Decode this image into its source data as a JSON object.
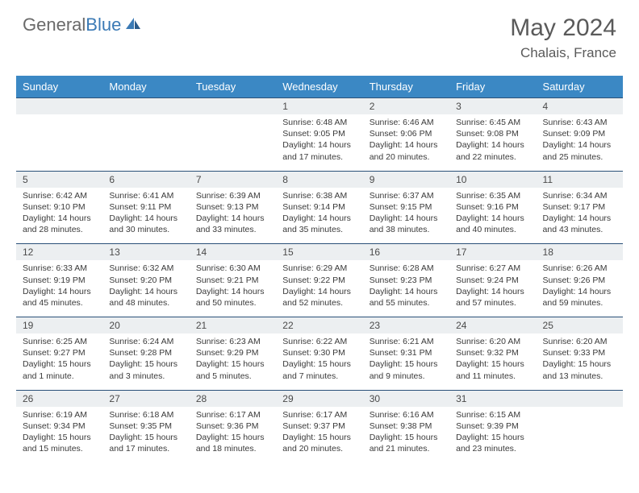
{
  "brand": {
    "part1": "General",
    "part2": "Blue"
  },
  "title": "May 2024",
  "location": "Chalais, France",
  "dayHeaders": [
    "Sunday",
    "Monday",
    "Tuesday",
    "Wednesday",
    "Thursday",
    "Friday",
    "Saturday"
  ],
  "colors": {
    "headerBg": "#3b88c4",
    "headerText": "#ffffff",
    "dayNumBg": "#eceff1",
    "borderTop": "#2a5078",
    "bodyText": "#3a3a3a",
    "titleText": "#5a5a5a",
    "logoGray": "#6a6a6a",
    "logoBlue": "#3b7ab5"
  },
  "typography": {
    "month_fontsize": 30,
    "location_fontsize": 17,
    "header_fontsize": 13,
    "daynum_fontsize": 12,
    "cell_fontsize": 10.5
  },
  "weeks": [
    [
      {
        "num": "",
        "sunrise": "",
        "sunset": "",
        "daylight": ""
      },
      {
        "num": "",
        "sunrise": "",
        "sunset": "",
        "daylight": ""
      },
      {
        "num": "",
        "sunrise": "",
        "sunset": "",
        "daylight": ""
      },
      {
        "num": "1",
        "sunrise": "Sunrise: 6:48 AM",
        "sunset": "Sunset: 9:05 PM",
        "daylight": "Daylight: 14 hours and 17 minutes."
      },
      {
        "num": "2",
        "sunrise": "Sunrise: 6:46 AM",
        "sunset": "Sunset: 9:06 PM",
        "daylight": "Daylight: 14 hours and 20 minutes."
      },
      {
        "num": "3",
        "sunrise": "Sunrise: 6:45 AM",
        "sunset": "Sunset: 9:08 PM",
        "daylight": "Daylight: 14 hours and 22 minutes."
      },
      {
        "num": "4",
        "sunrise": "Sunrise: 6:43 AM",
        "sunset": "Sunset: 9:09 PM",
        "daylight": "Daylight: 14 hours and 25 minutes."
      }
    ],
    [
      {
        "num": "5",
        "sunrise": "Sunrise: 6:42 AM",
        "sunset": "Sunset: 9:10 PM",
        "daylight": "Daylight: 14 hours and 28 minutes."
      },
      {
        "num": "6",
        "sunrise": "Sunrise: 6:41 AM",
        "sunset": "Sunset: 9:11 PM",
        "daylight": "Daylight: 14 hours and 30 minutes."
      },
      {
        "num": "7",
        "sunrise": "Sunrise: 6:39 AM",
        "sunset": "Sunset: 9:13 PM",
        "daylight": "Daylight: 14 hours and 33 minutes."
      },
      {
        "num": "8",
        "sunrise": "Sunrise: 6:38 AM",
        "sunset": "Sunset: 9:14 PM",
        "daylight": "Daylight: 14 hours and 35 minutes."
      },
      {
        "num": "9",
        "sunrise": "Sunrise: 6:37 AM",
        "sunset": "Sunset: 9:15 PM",
        "daylight": "Daylight: 14 hours and 38 minutes."
      },
      {
        "num": "10",
        "sunrise": "Sunrise: 6:35 AM",
        "sunset": "Sunset: 9:16 PM",
        "daylight": "Daylight: 14 hours and 40 minutes."
      },
      {
        "num": "11",
        "sunrise": "Sunrise: 6:34 AM",
        "sunset": "Sunset: 9:17 PM",
        "daylight": "Daylight: 14 hours and 43 minutes."
      }
    ],
    [
      {
        "num": "12",
        "sunrise": "Sunrise: 6:33 AM",
        "sunset": "Sunset: 9:19 PM",
        "daylight": "Daylight: 14 hours and 45 minutes."
      },
      {
        "num": "13",
        "sunrise": "Sunrise: 6:32 AM",
        "sunset": "Sunset: 9:20 PM",
        "daylight": "Daylight: 14 hours and 48 minutes."
      },
      {
        "num": "14",
        "sunrise": "Sunrise: 6:30 AM",
        "sunset": "Sunset: 9:21 PM",
        "daylight": "Daylight: 14 hours and 50 minutes."
      },
      {
        "num": "15",
        "sunrise": "Sunrise: 6:29 AM",
        "sunset": "Sunset: 9:22 PM",
        "daylight": "Daylight: 14 hours and 52 minutes."
      },
      {
        "num": "16",
        "sunrise": "Sunrise: 6:28 AM",
        "sunset": "Sunset: 9:23 PM",
        "daylight": "Daylight: 14 hours and 55 minutes."
      },
      {
        "num": "17",
        "sunrise": "Sunrise: 6:27 AM",
        "sunset": "Sunset: 9:24 PM",
        "daylight": "Daylight: 14 hours and 57 minutes."
      },
      {
        "num": "18",
        "sunrise": "Sunrise: 6:26 AM",
        "sunset": "Sunset: 9:26 PM",
        "daylight": "Daylight: 14 hours and 59 minutes."
      }
    ],
    [
      {
        "num": "19",
        "sunrise": "Sunrise: 6:25 AM",
        "sunset": "Sunset: 9:27 PM",
        "daylight": "Daylight: 15 hours and 1 minute."
      },
      {
        "num": "20",
        "sunrise": "Sunrise: 6:24 AM",
        "sunset": "Sunset: 9:28 PM",
        "daylight": "Daylight: 15 hours and 3 minutes."
      },
      {
        "num": "21",
        "sunrise": "Sunrise: 6:23 AM",
        "sunset": "Sunset: 9:29 PM",
        "daylight": "Daylight: 15 hours and 5 minutes."
      },
      {
        "num": "22",
        "sunrise": "Sunrise: 6:22 AM",
        "sunset": "Sunset: 9:30 PM",
        "daylight": "Daylight: 15 hours and 7 minutes."
      },
      {
        "num": "23",
        "sunrise": "Sunrise: 6:21 AM",
        "sunset": "Sunset: 9:31 PM",
        "daylight": "Daylight: 15 hours and 9 minutes."
      },
      {
        "num": "24",
        "sunrise": "Sunrise: 6:20 AM",
        "sunset": "Sunset: 9:32 PM",
        "daylight": "Daylight: 15 hours and 11 minutes."
      },
      {
        "num": "25",
        "sunrise": "Sunrise: 6:20 AM",
        "sunset": "Sunset: 9:33 PM",
        "daylight": "Daylight: 15 hours and 13 minutes."
      }
    ],
    [
      {
        "num": "26",
        "sunrise": "Sunrise: 6:19 AM",
        "sunset": "Sunset: 9:34 PM",
        "daylight": "Daylight: 15 hours and 15 minutes."
      },
      {
        "num": "27",
        "sunrise": "Sunrise: 6:18 AM",
        "sunset": "Sunset: 9:35 PM",
        "daylight": "Daylight: 15 hours and 17 minutes."
      },
      {
        "num": "28",
        "sunrise": "Sunrise: 6:17 AM",
        "sunset": "Sunset: 9:36 PM",
        "daylight": "Daylight: 15 hours and 18 minutes."
      },
      {
        "num": "29",
        "sunrise": "Sunrise: 6:17 AM",
        "sunset": "Sunset: 9:37 PM",
        "daylight": "Daylight: 15 hours and 20 minutes."
      },
      {
        "num": "30",
        "sunrise": "Sunrise: 6:16 AM",
        "sunset": "Sunset: 9:38 PM",
        "daylight": "Daylight: 15 hours and 21 minutes."
      },
      {
        "num": "31",
        "sunrise": "Sunrise: 6:15 AM",
        "sunset": "Sunset: 9:39 PM",
        "daylight": "Daylight: 15 hours and 23 minutes."
      },
      {
        "num": "",
        "sunrise": "",
        "sunset": "",
        "daylight": ""
      }
    ]
  ]
}
